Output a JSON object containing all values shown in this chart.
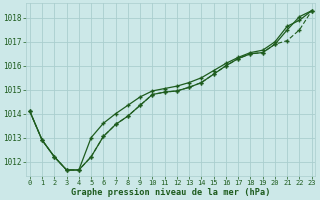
{
  "x": [
    0,
    1,
    2,
    3,
    4,
    5,
    6,
    7,
    8,
    9,
    10,
    11,
    12,
    13,
    14,
    15,
    16,
    17,
    18,
    19,
    20,
    21,
    22,
    23
  ],
  "line1": [
    1014.1,
    1012.9,
    1012.2,
    1011.65,
    1011.65,
    1012.2,
    1013.05,
    1013.55,
    1013.9,
    1014.35,
    1014.8,
    1014.9,
    1014.95,
    1015.1,
    1015.3,
    1015.65,
    1016.0,
    1016.3,
    1016.5,
    1016.55,
    1016.9,
    1017.05,
    1017.5,
    1018.3
  ],
  "line2": [
    1014.1,
    1012.9,
    1012.2,
    1011.65,
    1011.65,
    1013.0,
    1013.6,
    1014.0,
    1014.35,
    1014.7,
    1014.95,
    1015.05,
    1015.15,
    1015.3,
    1015.5,
    1015.8,
    1016.1,
    1016.35,
    1016.55,
    1016.65,
    1017.0,
    1017.65,
    1017.9,
    1018.3
  ],
  "line3": [
    1014.1,
    1012.9,
    1012.2,
    1011.65,
    1011.65,
    1012.2,
    1013.05,
    1013.55,
    1013.9,
    1014.35,
    1014.8,
    1014.9,
    1014.95,
    1015.1,
    1015.3,
    1015.65,
    1016.0,
    1016.3,
    1016.5,
    1016.55,
    1016.9,
    1017.5,
    1018.05,
    1018.3
  ],
  "bg_color": "#cce8e8",
  "grid_color": "#aacece",
  "line_color": "#1e5c1e",
  "xlabel": "Graphe pression niveau de la mer (hPa)",
  "ylim": [
    1011.4,
    1018.6
  ],
  "yticks": [
    1012,
    1013,
    1014,
    1015,
    1016,
    1017,
    1018
  ],
  "xticks": [
    0,
    1,
    2,
    3,
    4,
    5,
    6,
    7,
    8,
    9,
    10,
    11,
    12,
    13,
    14,
    15,
    16,
    17,
    18,
    19,
    20,
    21,
    22,
    23
  ],
  "figsize": [
    3.2,
    2.0
  ],
  "dpi": 100
}
